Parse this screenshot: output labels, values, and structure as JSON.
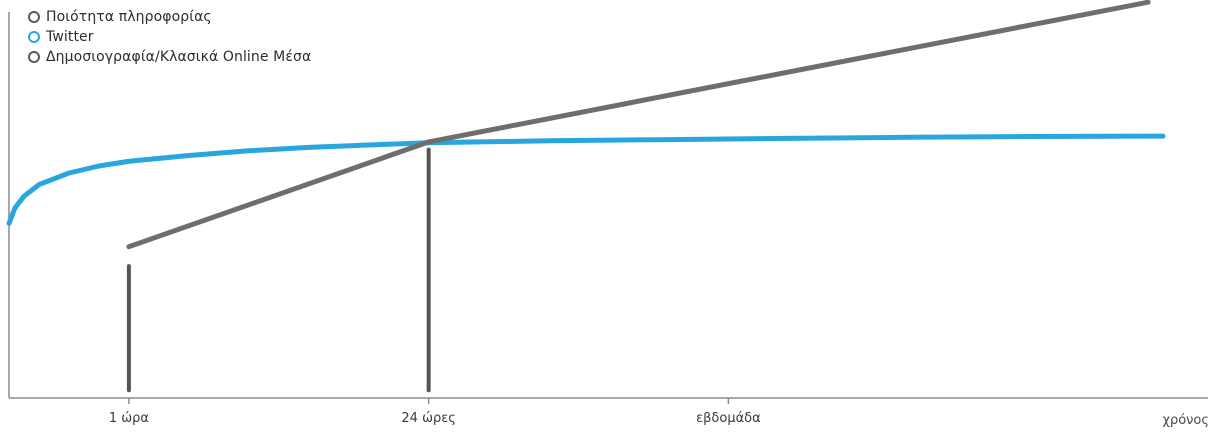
{
  "legend": [
    {
      "label": "Ποιότητα πληροφορίας",
      "color": "#5a5a5a"
    },
    {
      "label": "Twitter",
      "color": "#2aa6df"
    },
    {
      "label": "Δημοσιογραφία/Κλασικά Online Μέσα",
      "color": "#5a5a5a"
    }
  ],
  "chart_data": {
    "type": "line",
    "xlabel": "χρόνος",
    "ylabel": "",
    "grid": false,
    "legend_position": "top-left",
    "x_ticks": [
      {
        "label": "1 ώρα",
        "x": 1
      },
      {
        "label": "24 ώρες",
        "x": 2
      },
      {
        "label": "εβδομάδα",
        "x": 3
      }
    ],
    "xlim": [
      0.6,
      4.6
    ],
    "ylim": [
      0,
      100
    ],
    "series": [
      {
        "name": "Twitter",
        "color": "#2aa6df",
        "points": [
          [
            0.6,
            45
          ],
          [
            0.62,
            49
          ],
          [
            0.65,
            52
          ],
          [
            0.7,
            55
          ],
          [
            0.8,
            58
          ],
          [
            0.9,
            59.8
          ],
          [
            1.0,
            61
          ],
          [
            1.2,
            62.5
          ],
          [
            1.4,
            63.7
          ],
          [
            1.6,
            64.6
          ],
          [
            1.8,
            65.2
          ],
          [
            2.0,
            65.8
          ],
          [
            2.4,
            66.3
          ],
          [
            2.8,
            66.6
          ],
          [
            3.2,
            66.9
          ],
          [
            3.6,
            67.2
          ],
          [
            4.0,
            67.4
          ],
          [
            4.4,
            67.5
          ],
          [
            4.45,
            67.5
          ]
        ]
      },
      {
        "name": "Δημοσιογραφία/Κλασικά Online Μέσα",
        "color": "#6e6e6e",
        "points": [
          [
            1.0,
            39
          ],
          [
            2.0,
            66
          ],
          [
            4.4,
            102
          ]
        ]
      }
    ],
    "reference_lines": [
      {
        "x": 1.0,
        "y_from": 2,
        "y_to": 34
      },
      {
        "x": 2.0,
        "y_from": 2,
        "y_to": 64
      }
    ]
  }
}
